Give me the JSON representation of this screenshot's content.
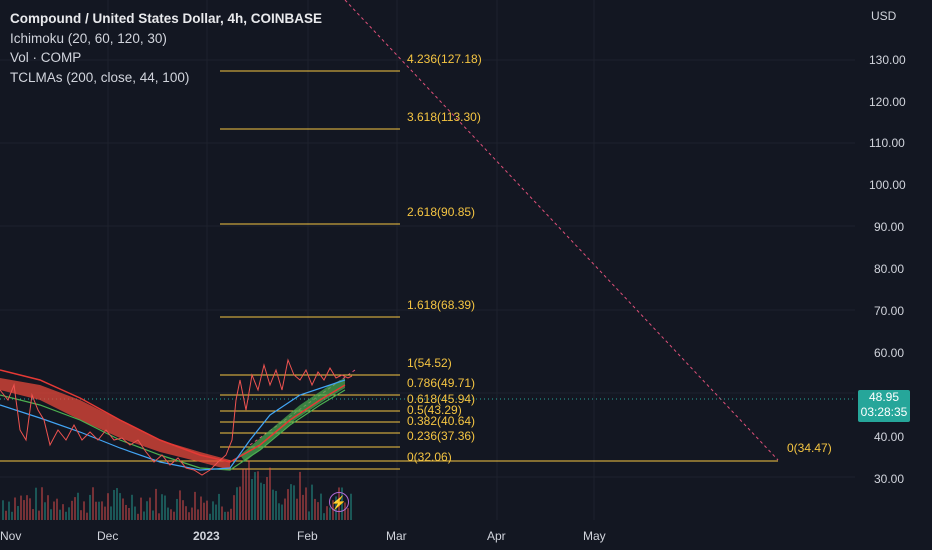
{
  "legend": {
    "title": "Compound / United States Dollar, 4h, COINBASE",
    "ichimoku": "Ichimoku (20, 60, 120, 30)",
    "volume": "Vol · COMP",
    "tclmas": "TCLMAs (200, close, 44, 100)"
  },
  "price_axis": {
    "currency": "USD",
    "ticks": [
      "130.00",
      "120.00",
      "110.00",
      "100.00",
      "90.00",
      "80.00",
      "70.00",
      "60.00",
      "40.00",
      "30.00"
    ]
  },
  "time_axis": {
    "ticks": [
      "Nov",
      "Dec",
      "2023",
      "Feb",
      "Mar",
      "Apr",
      "May"
    ]
  },
  "current_price": {
    "value": "48.95",
    "countdown": "03:28:35",
    "color": "#26a69a"
  },
  "fib_levels": [
    {
      "label": "4.236(127.18)"
    },
    {
      "label": "3.618(113.30)"
    },
    {
      "label": "2.618(90.85)"
    },
    {
      "label": "1.618(68.39)"
    },
    {
      "label": "1(54.52)"
    },
    {
      "label": "0.786(49.71)"
    },
    {
      "label": "0.618(45.94)"
    },
    {
      "label": "0.5(43.29)"
    },
    {
      "label": "0.382(40.64)"
    },
    {
      "label": "0.236(37.36)"
    },
    {
      "label": "0(32.06)"
    }
  ],
  "target_label": "0(34.47)",
  "colors": {
    "background": "#131722",
    "fib": "#f5c542",
    "trendline": "#e0507a",
    "cloud_bear": "#e5483a",
    "cloud_bull": "#4caf50"
  },
  "icons": {
    "alert": "lightning-bolt-icon"
  }
}
